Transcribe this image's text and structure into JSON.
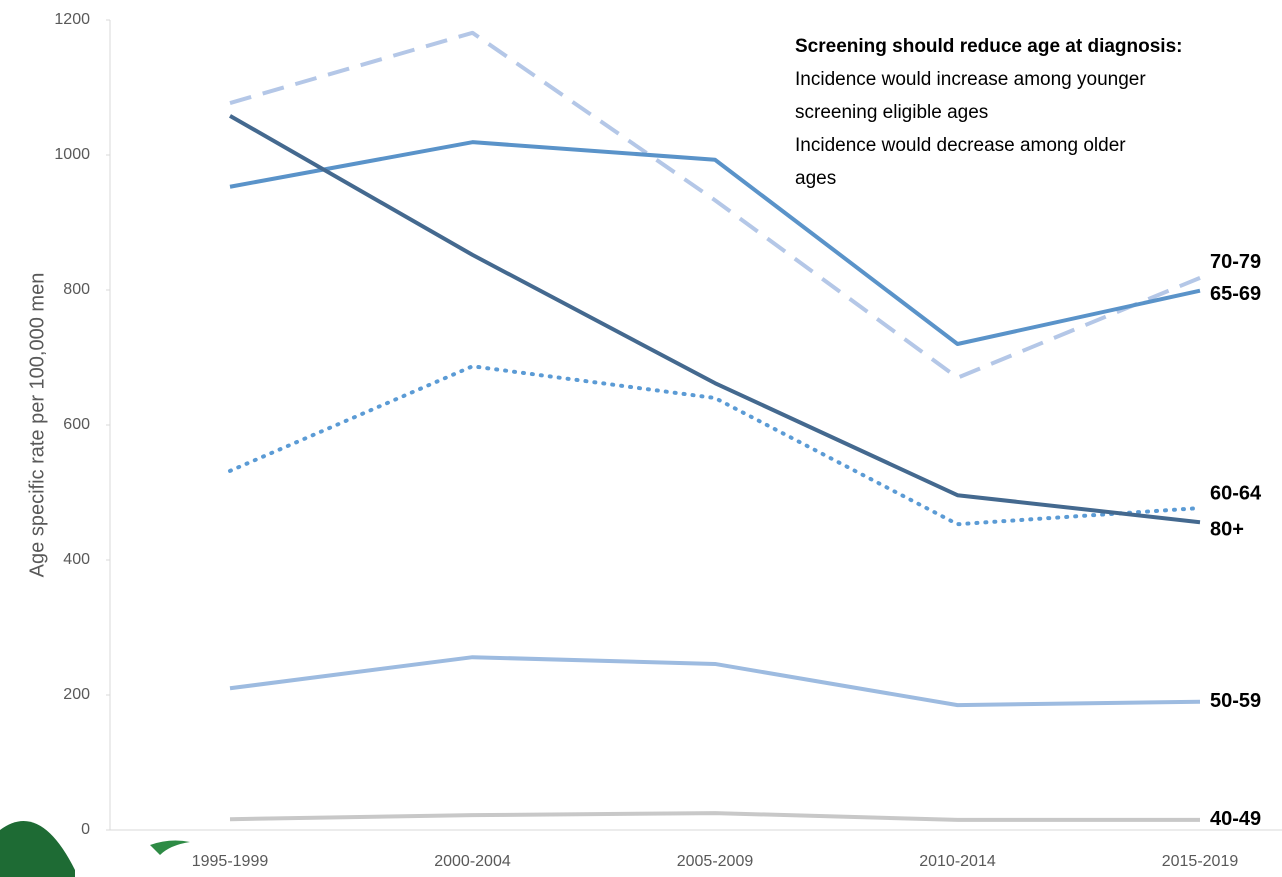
{
  "chart_data": {
    "type": "line",
    "y_label": "Age specific rate per 100,000 men",
    "categories": [
      "1995-1999",
      "2000-2004",
      "2005-2009",
      "2010-2014",
      "2015-2019"
    ],
    "ylim": [
      0,
      1200
    ],
    "yticks": [
      0,
      200,
      400,
      600,
      800,
      1000,
      1200
    ],
    "annotation": {
      "title": "Screening should reduce age at diagnosis:",
      "lines": [
        "Incidence would increase among younger",
        "screening eligible ages",
        "Incidence would decrease among older",
        "ages"
      ]
    },
    "series": [
      {
        "name": "70-79",
        "color": "#b4c7e7",
        "style": "dashed",
        "values": [
          1077,
          1181,
          933,
          670,
          818
        ]
      },
      {
        "name": "65-69",
        "color": "#5a93c9",
        "style": "solid",
        "values": [
          953,
          1019,
          993,
          720,
          799
        ]
      },
      {
        "name": "60-64",
        "color": "#5b9bd5",
        "style": "dotted",
        "values": [
          532,
          687,
          640,
          453,
          477
        ]
      },
      {
        "name": "80+",
        "color": "#44698f",
        "style": "solid",
        "values": [
          1058,
          852,
          662,
          496,
          456
        ]
      },
      {
        "name": "50-59",
        "color": "#9dbbe0",
        "style": "solid",
        "values": [
          210,
          256,
          246,
          185,
          190
        ]
      },
      {
        "name": "40-49",
        "color": "#c8c8c8",
        "style": "solid",
        "values": [
          16,
          22,
          25,
          15,
          15
        ]
      }
    ]
  }
}
